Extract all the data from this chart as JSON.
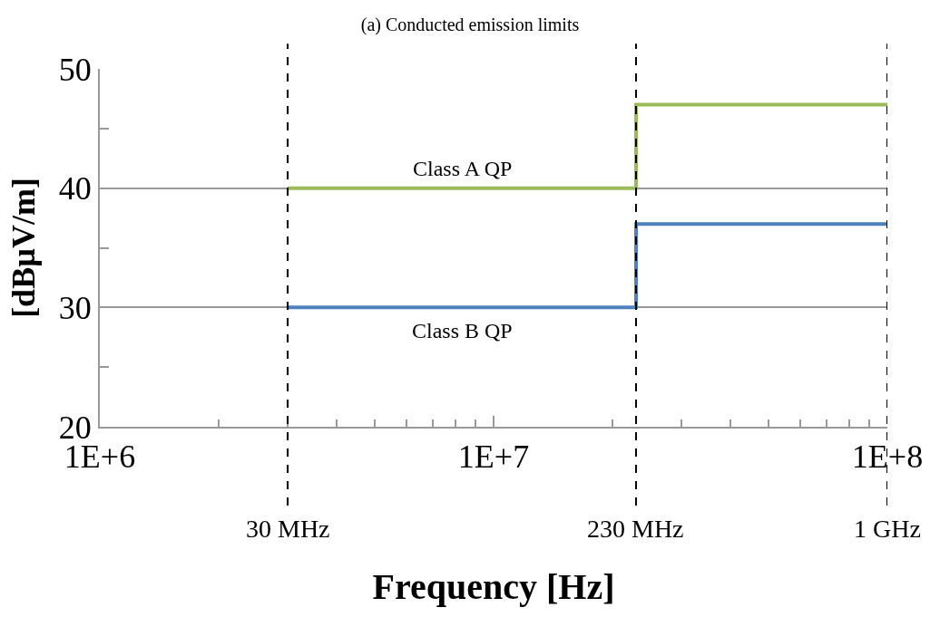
{
  "chart_data": {
    "type": "step",
    "title": "(a) Conducted emission limits",
    "xlabel": "Frequency [Hz]",
    "ylabel": "[dBµV/m]",
    "x": [
      3000000.0,
      23000000.0,
      100000000.0
    ],
    "series": [
      {
        "name": "Class A QP",
        "color": "#9bbb59",
        "values": [
          40,
          47,
          47
        ]
      },
      {
        "name": "Class B QP",
        "color": "#4f81bd",
        "values": [
          30,
          37,
          37
        ]
      }
    ],
    "log": "x",
    "xlim": [
      1000000.0,
      100000000.0
    ],
    "ylim": [
      20,
      50
    ],
    "xticks": [
      {
        "value": 1000000.0,
        "label": "1E+6"
      },
      {
        "value": 2000000.0,
        "label": null
      },
      {
        "value": 3000000.0,
        "label": null
      },
      {
        "value": 4000000.0,
        "label": null
      },
      {
        "value": 5000000.0,
        "label": null
      },
      {
        "value": 6000000.0,
        "label": null
      },
      {
        "value": 7000000.0,
        "label": null
      },
      {
        "value": 8000000.0,
        "label": null
      },
      {
        "value": 9000000.0,
        "label": null
      },
      {
        "value": 10000000.0,
        "label": "1E+7"
      },
      {
        "value": 20000000.0,
        "label": null
      },
      {
        "value": 30000000.0,
        "label": null
      },
      {
        "value": 40000000.0,
        "label": null
      },
      {
        "value": 50000000.0,
        "label": null
      },
      {
        "value": 60000000.0,
        "label": null
      },
      {
        "value": 70000000.0,
        "label": null
      },
      {
        "value": 80000000.0,
        "label": null
      },
      {
        "value": 90000000.0,
        "label": null
      },
      {
        "value": 100000000.0,
        "label": "1E+8"
      }
    ],
    "yticks": [
      20,
      {
        "value": 25,
        "label": null
      },
      30,
      {
        "value": 35,
        "label": null
      },
      40,
      {
        "value": 45,
        "label": null
      },
      50
    ],
    "grid": "y",
    "legend": false,
    "ref_lines": [
      {
        "axis": "x",
        "value": 3000000.0,
        "label": "30 MHz",
        "line_style": "dashed"
      },
      {
        "axis": "x",
        "value": 23000000.0,
        "label": "230 MHz",
        "line_style": "dashed"
      },
      {
        "axis": "x",
        "value": 100000000.0,
        "label": "1 GHz",
        "line_style": "dashed"
      }
    ]
  }
}
